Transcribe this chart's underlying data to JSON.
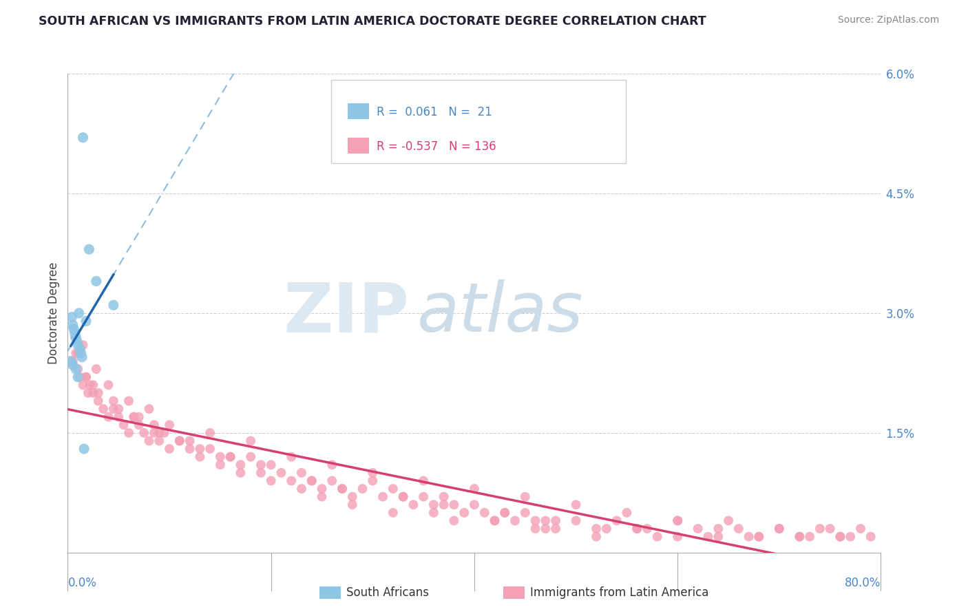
{
  "title": "SOUTH AFRICAN VS IMMIGRANTS FROM LATIN AMERICA DOCTORATE DEGREE CORRELATION CHART",
  "source": "Source: ZipAtlas.com",
  "ylabel": "Doctorate Degree",
  "xlim": [
    0.0,
    80.0
  ],
  "ylim": [
    0.0,
    6.0
  ],
  "yticks": [
    0.0,
    1.5,
    3.0,
    4.5,
    6.0
  ],
  "ytick_labels": [
    "",
    "1.5%",
    "3.0%",
    "4.5%",
    "6.0%"
  ],
  "blue_color": "#8ec6e6",
  "pink_color": "#f4a0b5",
  "blue_line_color": "#2166ac",
  "pink_line_color": "#d6406e",
  "blue_dash_color": "#5a9fd4",
  "axis_label_color": "#4a86c8",
  "title_color": "#222233",
  "legend_bottom_blue": "South Africans",
  "legend_bottom_pink": "Immigrants from Latin America",
  "blue_scatter_x": [
    1.5,
    2.1,
    2.8,
    1.1,
    0.4,
    0.5,
    0.6,
    0.7,
    0.8,
    0.9,
    1.0,
    1.2,
    1.3,
    1.4,
    0.3,
    0.5,
    0.8,
    1.0,
    1.8,
    4.5,
    1.6
  ],
  "blue_scatter_y": [
    5.2,
    3.8,
    3.4,
    3.0,
    2.95,
    2.85,
    2.8,
    2.75,
    2.7,
    2.65,
    2.6,
    2.55,
    2.5,
    2.45,
    2.4,
    2.35,
    2.3,
    2.2,
    2.9,
    3.1,
    1.3
  ],
  "pink_scatter_x": [
    0.5,
    0.8,
    1.0,
    1.2,
    1.5,
    1.8,
    2.0,
    2.2,
    2.5,
    3.0,
    3.5,
    4.0,
    4.5,
    5.0,
    5.5,
    6.0,
    6.5,
    7.0,
    7.5,
    8.0,
    8.5,
    9.0,
    9.5,
    10.0,
    11.0,
    12.0,
    13.0,
    14.0,
    15.0,
    16.0,
    17.0,
    18.0,
    19.0,
    20.0,
    21.0,
    22.0,
    23.0,
    24.0,
    25.0,
    26.0,
    27.0,
    28.0,
    29.0,
    30.0,
    31.0,
    32.0,
    33.0,
    34.0,
    35.0,
    36.0,
    37.0,
    38.0,
    39.0,
    40.0,
    41.0,
    42.0,
    43.0,
    44.0,
    45.0,
    46.0,
    47.0,
    48.0,
    50.0,
    52.0,
    54.0,
    56.0,
    58.0,
    60.0,
    62.0,
    64.0,
    66.0,
    68.0,
    70.0,
    72.0,
    74.0,
    76.0,
    78.0,
    79.0,
    1.5,
    2.8,
    4.0,
    6.0,
    8.0,
    10.0,
    14.0,
    18.0,
    22.0,
    26.0,
    30.0,
    35.0,
    40.0,
    45.0,
    50.0,
    55.0,
    60.0,
    65.0,
    70.0,
    75.0,
    1.0,
    1.8,
    3.0,
    5.0,
    7.0,
    9.0,
    11.0,
    13.0,
    15.0,
    17.0,
    20.0,
    23.0,
    25.0,
    28.0,
    32.0,
    36.0,
    38.0,
    42.0,
    46.0,
    48.0,
    52.0,
    56.0,
    60.0,
    64.0,
    68.0,
    72.0,
    76.0,
    0.7,
    2.5,
    4.5,
    6.5,
    8.5,
    12.0,
    16.0,
    19.0,
    24.0,
    27.0,
    33.0,
    37.0,
    43.0,
    47.0,
    53.0,
    57.0,
    63.0,
    67.0,
    73.0,
    77.0
  ],
  "pink_scatter_y": [
    2.4,
    2.5,
    2.3,
    2.2,
    2.1,
    2.2,
    2.0,
    2.1,
    2.0,
    1.9,
    1.8,
    1.7,
    1.8,
    1.7,
    1.6,
    1.5,
    1.7,
    1.6,
    1.5,
    1.4,
    1.5,
    1.4,
    1.5,
    1.3,
    1.4,
    1.3,
    1.2,
    1.3,
    1.1,
    1.2,
    1.1,
    1.2,
    1.0,
    1.1,
    1.0,
    0.9,
    1.0,
    0.9,
    0.8,
    0.9,
    0.8,
    0.7,
    0.8,
    0.9,
    0.7,
    0.8,
    0.7,
    0.6,
    0.7,
    0.6,
    0.7,
    0.6,
    0.5,
    0.6,
    0.5,
    0.4,
    0.5,
    0.4,
    0.5,
    0.4,
    0.3,
    0.4,
    0.4,
    0.3,
    0.4,
    0.3,
    0.2,
    0.4,
    0.3,
    0.2,
    0.3,
    0.2,
    0.3,
    0.2,
    0.3,
    0.2,
    0.3,
    0.2,
    2.6,
    2.3,
    2.1,
    1.9,
    1.8,
    1.6,
    1.5,
    1.4,
    1.2,
    1.1,
    1.0,
    0.9,
    0.8,
    0.7,
    0.6,
    0.5,
    0.4,
    0.4,
    0.3,
    0.3,
    2.5,
    2.2,
    2.0,
    1.8,
    1.7,
    1.5,
    1.4,
    1.3,
    1.2,
    1.0,
    0.9,
    0.8,
    0.7,
    0.6,
    0.5,
    0.5,
    0.4,
    0.4,
    0.3,
    0.3,
    0.2,
    0.3,
    0.2,
    0.3,
    0.2,
    0.2,
    0.2,
    2.7,
    2.1,
    1.9,
    1.7,
    1.6,
    1.4,
    1.2,
    1.1,
    0.9,
    0.8,
    0.7,
    0.6,
    0.5,
    0.4,
    0.3,
    0.3,
    0.2,
    0.2,
    0.2,
    0.2
  ]
}
